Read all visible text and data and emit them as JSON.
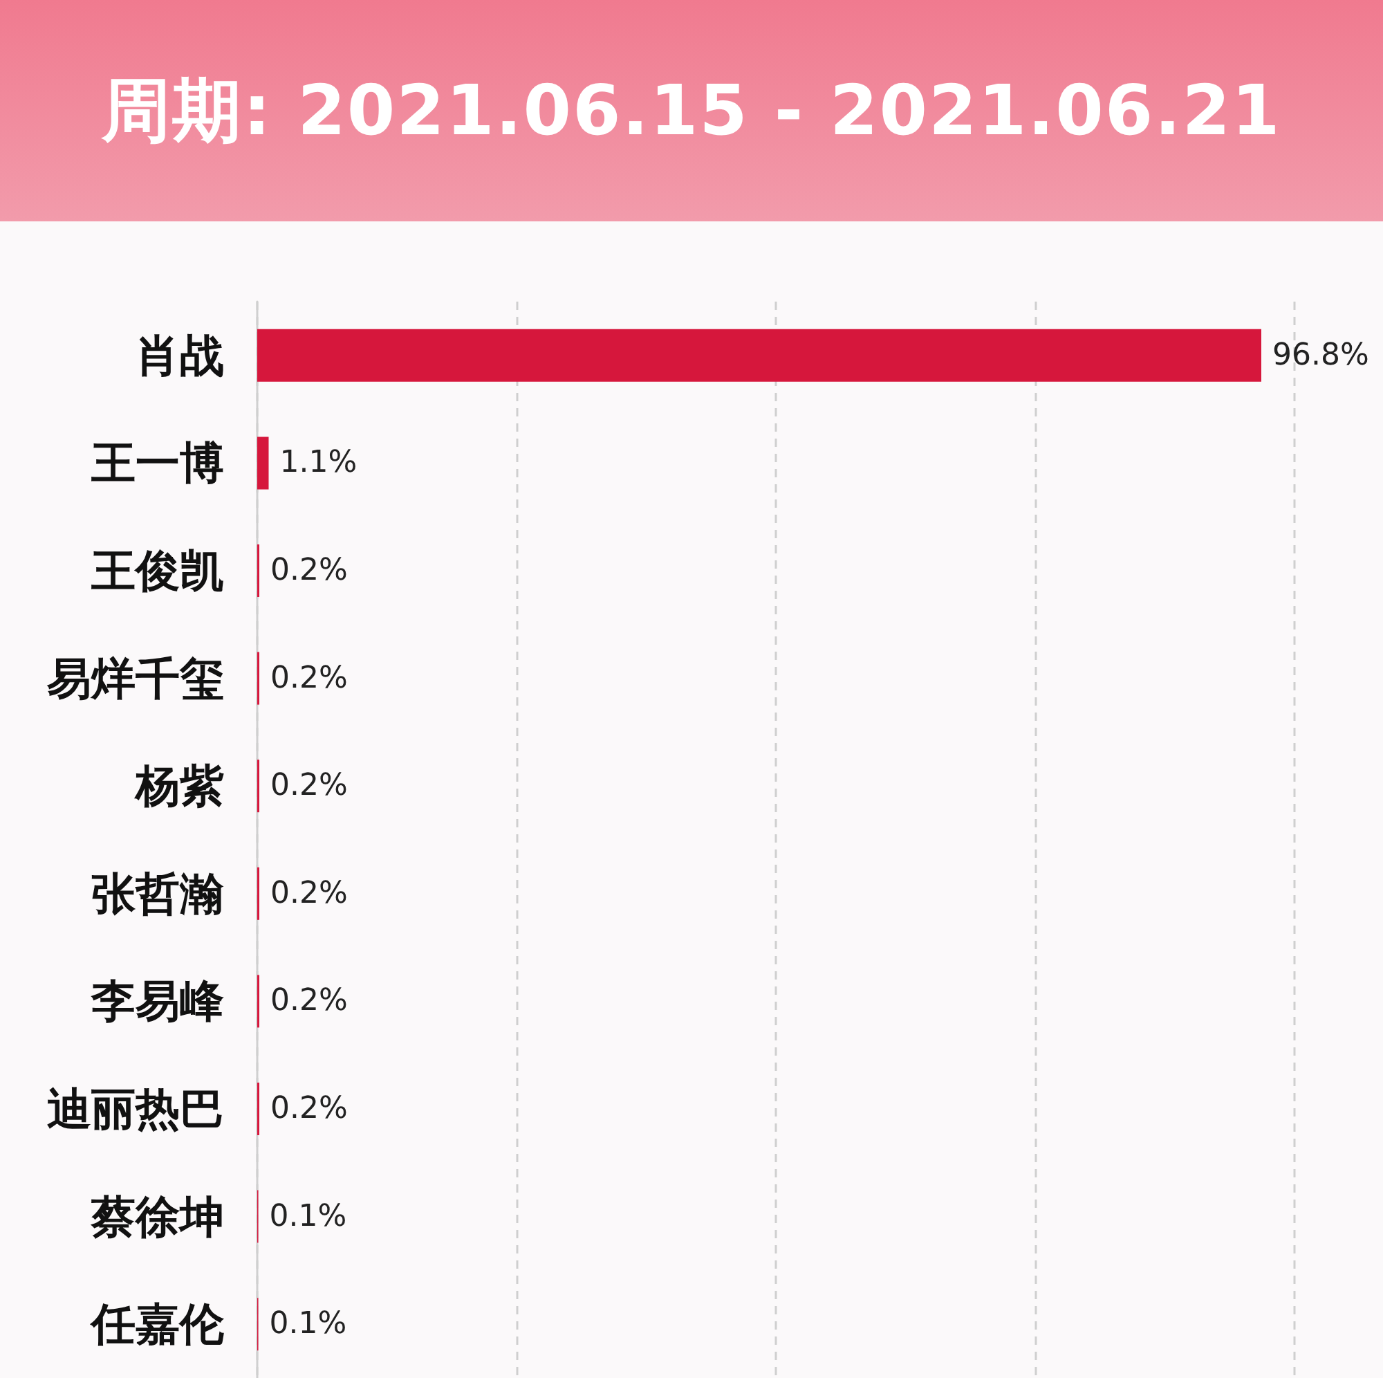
{
  "chart_data": {
    "type": "bar",
    "orientation": "horizontal",
    "title": "周期: 2021.06.15 - 2021.06.21",
    "categories": [
      "肖战",
      "王一博",
      "王俊凯",
      "易烊千玺",
      "杨紫",
      "张哲瀚",
      "李易峰",
      "迪丽热巴",
      "蔡徐坤",
      "任嘉伦"
    ],
    "values": [
      96.8,
      1.1,
      0.2,
      0.2,
      0.2,
      0.2,
      0.2,
      0.2,
      0.1,
      0.1
    ],
    "value_labels": [
      "96.8%",
      "1.1%",
      "0.2%",
      "0.2%",
      "0.2%",
      "0.2%",
      "0.2%",
      "0.2%",
      "0.1%",
      "0.1%"
    ],
    "color": "#d6173c",
    "xlim": [
      0,
      100
    ],
    "xticks": [
      {
        "value": 0,
        "label": null
      },
      {
        "value": 25,
        "label": null
      },
      {
        "value": 50,
        "label": null
      },
      {
        "value": 75,
        "label": null
      },
      {
        "value": 100,
        "label": null
      }
    ],
    "tick_labels": "y",
    "grid": "x"
  }
}
